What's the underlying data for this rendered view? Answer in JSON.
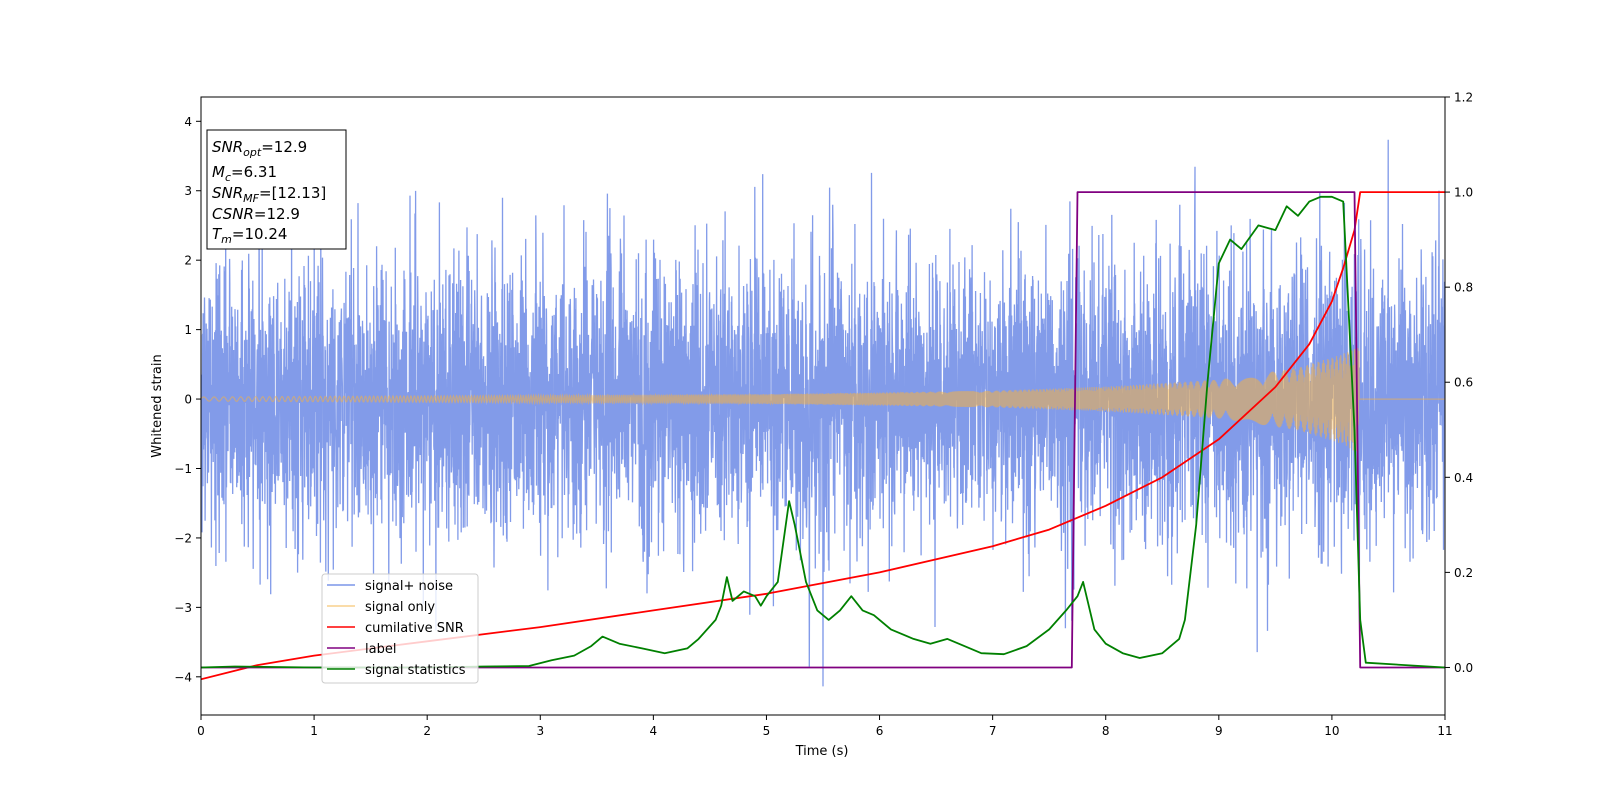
{
  "chart_data": {
    "type": "line",
    "xlabel": "Time (s)",
    "ylabel": "Whitened strain",
    "xlim": [
      0,
      11
    ],
    "ylim": [
      -4.55,
      4.35
    ],
    "y2lim": [
      -0.1,
      1.2
    ],
    "x_ticks": [
      0,
      1,
      2,
      3,
      4,
      5,
      6,
      7,
      8,
      9,
      10,
      11
    ],
    "y_ticks": [
      -4,
      -3,
      -2,
      -1,
      0,
      1,
      2,
      3,
      4
    ],
    "y2_ticks": [
      0.0,
      0.2,
      0.4,
      0.6,
      0.8,
      1.0,
      1.2
    ],
    "x_tick_labels": [
      "0",
      "1",
      "2",
      "3",
      "4",
      "5",
      "6",
      "7",
      "8",
      "9",
      "10",
      "11"
    ],
    "y_tick_labels": [
      "−4",
      "−3",
      "−2",
      "−1",
      "0",
      "1",
      "2",
      "3",
      "4"
    ],
    "y2_tick_labels": [
      "0.0",
      "0.2",
      "0.4",
      "0.6",
      "0.8",
      "1.0",
      "1.2"
    ],
    "info_box": {
      "snr_opt": {
        "base": "SNR",
        "sub": "opt",
        "value": "=12.9"
      },
      "mc": {
        "base": "M",
        "sub": "c",
        "value": "=6.31"
      },
      "snr_mf": {
        "base": "SNR",
        "sub": "MF",
        "value": "=[12.13]"
      },
      "csnr": {
        "base": "CSNR",
        "sub": "",
        "value": "=12.9"
      },
      "tm": {
        "base": "T",
        "sub": "m",
        "value": "=10.24"
      }
    },
    "legend_position": "lower-left",
    "series": [
      {
        "name": "signal+ noise",
        "color": "#7b96e8",
        "axis": "left",
        "noise_sigma": 1.0,
        "chirp_envelope": [
          [
            0,
            0.03
          ],
          [
            7,
            0.12
          ],
          [
            8,
            0.18
          ],
          [
            9,
            0.28
          ],
          [
            9.7,
            0.45
          ],
          [
            10.1,
            0.65
          ],
          [
            10.2,
            0.75
          ]
        ]
      },
      {
        "name": "signal only",
        "color": "#f5b041",
        "axis": "left",
        "merger_time": 10.24,
        "envelope": [
          [
            0,
            0.03
          ],
          [
            5,
            0.07
          ],
          [
            7,
            0.12
          ],
          [
            8,
            0.18
          ],
          [
            9,
            0.28
          ],
          [
            9.7,
            0.45
          ],
          [
            10.1,
            0.65
          ],
          [
            10.2,
            0.75
          ]
        ]
      },
      {
        "name": "cumilative SNR",
        "color": "#ff0000",
        "axis": "right",
        "points": [
          [
            0,
            -0.025
          ],
          [
            0.5,
            0.005
          ],
          [
            1,
            0.025
          ],
          [
            2,
            0.055
          ],
          [
            3,
            0.085
          ],
          [
            4,
            0.12
          ],
          [
            5,
            0.155
          ],
          [
            6,
            0.2
          ],
          [
            7,
            0.255
          ],
          [
            7.5,
            0.29
          ],
          [
            8,
            0.34
          ],
          [
            8.5,
            0.4
          ],
          [
            9,
            0.48
          ],
          [
            9.5,
            0.59
          ],
          [
            9.8,
            0.68
          ],
          [
            10,
            0.77
          ],
          [
            10.1,
            0.84
          ],
          [
            10.2,
            0.92
          ],
          [
            10.25,
            1.0
          ],
          [
            11,
            1.0
          ]
        ]
      },
      {
        "name": "label",
        "color": "#800080",
        "axis": "right",
        "points": [
          [
            0,
            0
          ],
          [
            7.7,
            0
          ],
          [
            7.75,
            1.0
          ],
          [
            10.2,
            1.0
          ],
          [
            10.25,
            0
          ],
          [
            11,
            0
          ]
        ]
      },
      {
        "name": "signal statistics",
        "color": "#008000",
        "axis": "right",
        "points": [
          [
            0,
            0
          ],
          [
            0.3,
            0.002
          ],
          [
            1,
            0
          ],
          [
            2,
            0
          ],
          [
            2.5,
            0.002
          ],
          [
            2.9,
            0.003
          ],
          [
            3.1,
            0.015
          ],
          [
            3.3,
            0.025
          ],
          [
            3.45,
            0.045
          ],
          [
            3.55,
            0.065
          ],
          [
            3.7,
            0.05
          ],
          [
            3.9,
            0.04
          ],
          [
            4.1,
            0.03
          ],
          [
            4.3,
            0.04
          ],
          [
            4.4,
            0.06
          ],
          [
            4.55,
            0.1
          ],
          [
            4.6,
            0.13
          ],
          [
            4.65,
            0.19
          ],
          [
            4.7,
            0.14
          ],
          [
            4.8,
            0.16
          ],
          [
            4.9,
            0.15
          ],
          [
            4.95,
            0.13
          ],
          [
            5.0,
            0.15
          ],
          [
            5.1,
            0.18
          ],
          [
            5.2,
            0.35
          ],
          [
            5.25,
            0.3
          ],
          [
            5.35,
            0.18
          ],
          [
            5.45,
            0.12
          ],
          [
            5.55,
            0.1
          ],
          [
            5.65,
            0.12
          ],
          [
            5.75,
            0.15
          ],
          [
            5.85,
            0.12
          ],
          [
            5.95,
            0.11
          ],
          [
            6.1,
            0.08
          ],
          [
            6.3,
            0.06
          ],
          [
            6.45,
            0.05
          ],
          [
            6.6,
            0.06
          ],
          [
            6.75,
            0.045
          ],
          [
            6.9,
            0.03
          ],
          [
            7.1,
            0.028
          ],
          [
            7.3,
            0.045
          ],
          [
            7.5,
            0.08
          ],
          [
            7.65,
            0.12
          ],
          [
            7.75,
            0.15
          ],
          [
            7.8,
            0.18
          ],
          [
            7.9,
            0.08
          ],
          [
            8.0,
            0.05
          ],
          [
            8.15,
            0.03
          ],
          [
            8.3,
            0.02
          ],
          [
            8.5,
            0.03
          ],
          [
            8.65,
            0.06
          ],
          [
            8.7,
            0.1
          ],
          [
            8.8,
            0.3
          ],
          [
            8.9,
            0.6
          ],
          [
            9.0,
            0.85
          ],
          [
            9.1,
            0.9
          ],
          [
            9.2,
            0.88
          ],
          [
            9.35,
            0.93
          ],
          [
            9.5,
            0.92
          ],
          [
            9.6,
            0.97
          ],
          [
            9.7,
            0.95
          ],
          [
            9.8,
            0.98
          ],
          [
            9.9,
            0.99
          ],
          [
            10.0,
            0.99
          ],
          [
            10.1,
            0.98
          ],
          [
            10.2,
            0.5
          ],
          [
            10.25,
            0.1
          ],
          [
            10.3,
            0.01
          ],
          [
            11,
            0
          ]
        ]
      }
    ]
  }
}
